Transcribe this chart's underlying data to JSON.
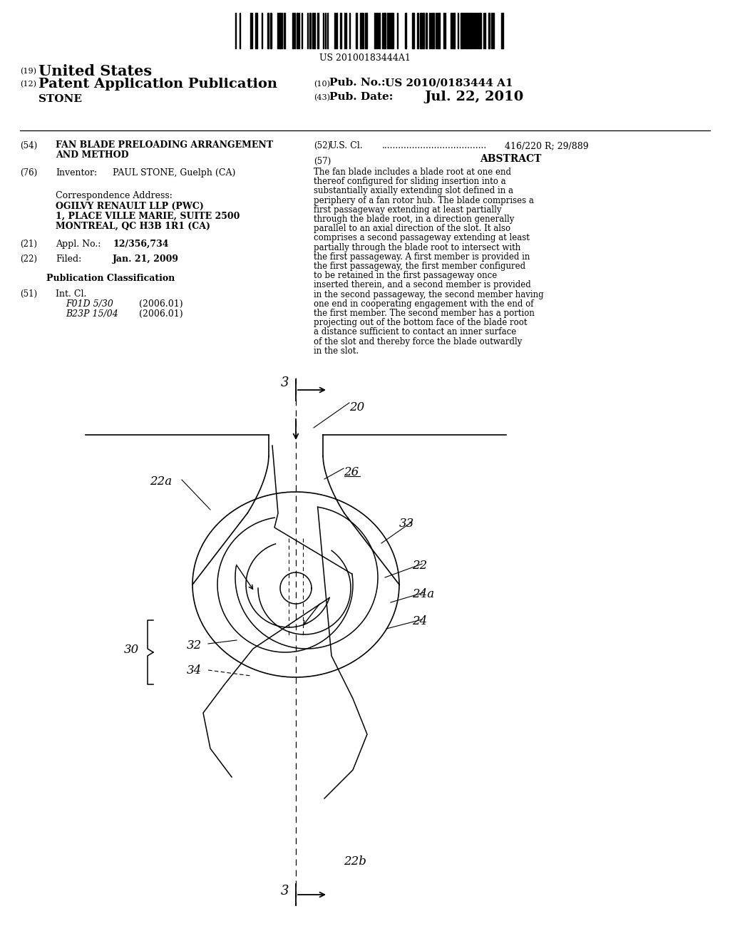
{
  "bg_color": "#ffffff",
  "barcode_text": "US 20100183444A1",
  "patent_number": "US 2010/0183444 A1",
  "pub_date": "Jul. 22, 2010",
  "inventor": "PAUL STONE, Guelph (CA)",
  "corr_address": [
    "OGILVY RENAULT LLP (PWC)",
    "1, PLACE VILLE MARIE, SUITE 2500",
    "MONTREAL, QC H3B 1R1 (CA)"
  ],
  "appl_no": "12/356,734",
  "filed": "Jan. 21, 2009",
  "us_cl": "416/220 R; 29/889",
  "int_cl": [
    [
      "F01D 5/30",
      "(2006.01)"
    ],
    [
      "B23P 15/04",
      "(2006.01)"
    ]
  ],
  "abstract": "The fan blade includes a blade root at one end thereof configured for sliding insertion into a substantially axially extending slot defined in a periphery of a fan rotor hub. The blade comprises a first passageway extending at least partially through the blade root, in a direction generally parallel to an axial direction of the slot. It also comprises a second passageway extending at least partially through the blade root to intersect with the first passageway. A first member is provided in the first passageway, the first member configured to be retained in the first passageway once inserted therein, and a second member is provided in the second passageway, the second member having one end in cooperating engagement with the end of the first member. The second member has a portion projecting out of the bottom face of the blade root a distance sufficient to contact an inner surface of the slot and thereby force the blade outwardly in the slot."
}
